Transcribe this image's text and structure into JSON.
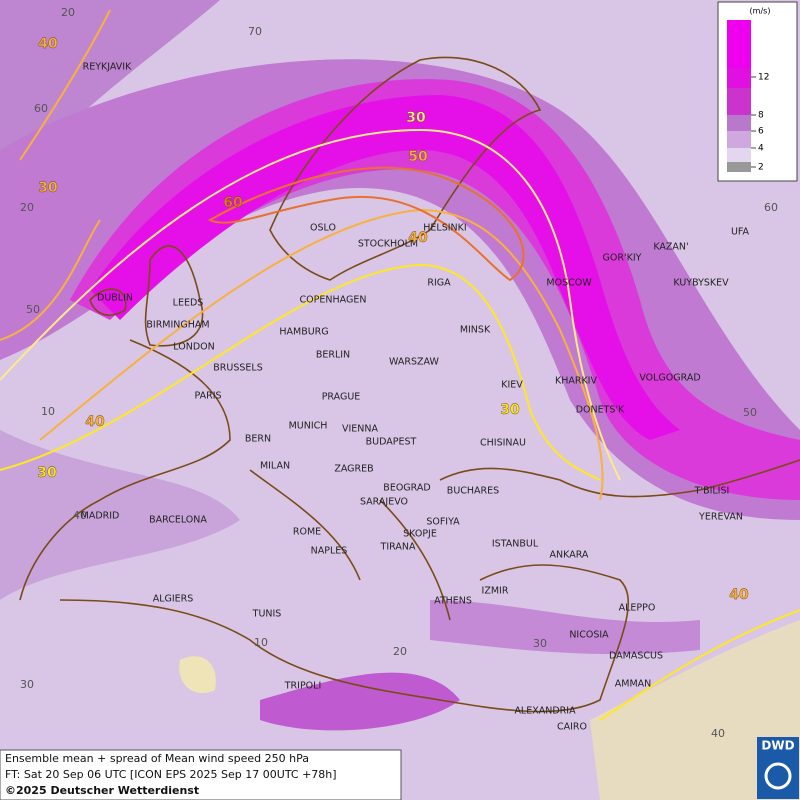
{
  "legend": {
    "unit": "(m/s)",
    "ticks": [
      12,
      8,
      6,
      4,
      2
    ]
  },
  "cities": [
    "REYKJAVIK",
    "OSLO",
    "HELSINKI",
    "STOCKHOLM",
    "RIGA",
    "MOSCOW",
    "GOR'KIY",
    "KAZAN'",
    "UFA",
    "KUYBYSKEV",
    "DUBLIN",
    "LEEDS",
    "BIRMINGHAM",
    "LONDON",
    "COPENHAGEN",
    "HAMBURG",
    "BERLIN",
    "WARSZAW",
    "MINSK",
    "BRUSSELS",
    "PARIS",
    "KIEV",
    "KHARKIV",
    "VOLGOGRAD",
    "PRAGUE",
    "DONETS'K",
    "BERN",
    "MUNICH",
    "VIENNA",
    "BUDAPEST",
    "CHISINAU",
    "MILAN",
    "ZAGREB",
    "BEOGRAD",
    "BUCHARES",
    "T'BILISI",
    "YEREVAN",
    "MADRID",
    "BARCELONA",
    "SARAJEVO",
    "SOFIYA",
    "ROME",
    "SKOPJE",
    "ISTANBUL",
    "ANKARA",
    "TIRANA",
    "NAPLES",
    "ALGIERS",
    "ATHENS",
    "IZMIR",
    "ALEPPO",
    "TUNIS",
    "NICOSIA",
    "DAMASCUS",
    "TRIPOLI",
    "AMMAN",
    "ALEXANDRIA",
    "CAIRO"
  ],
  "contour_labels": [
    40,
    30,
    30,
    50,
    60,
    40,
    40,
    30,
    30,
    40
  ],
  "grid_labels": [
    20,
    70,
    60,
    20,
    50,
    10,
    40,
    60,
    50,
    10,
    20,
    30,
    30,
    40
  ],
  "footer": {
    "line1": "Ensemble mean + spread of Mean wind speed 250 hPa",
    "line2": "FT: Sat 20 Sep 06 UTC [ICON EPS 2025 Sep 17 00UTC +78h]",
    "copyright": "©2025 Deutscher Wetterdienst"
  },
  "logo": "DWD"
}
